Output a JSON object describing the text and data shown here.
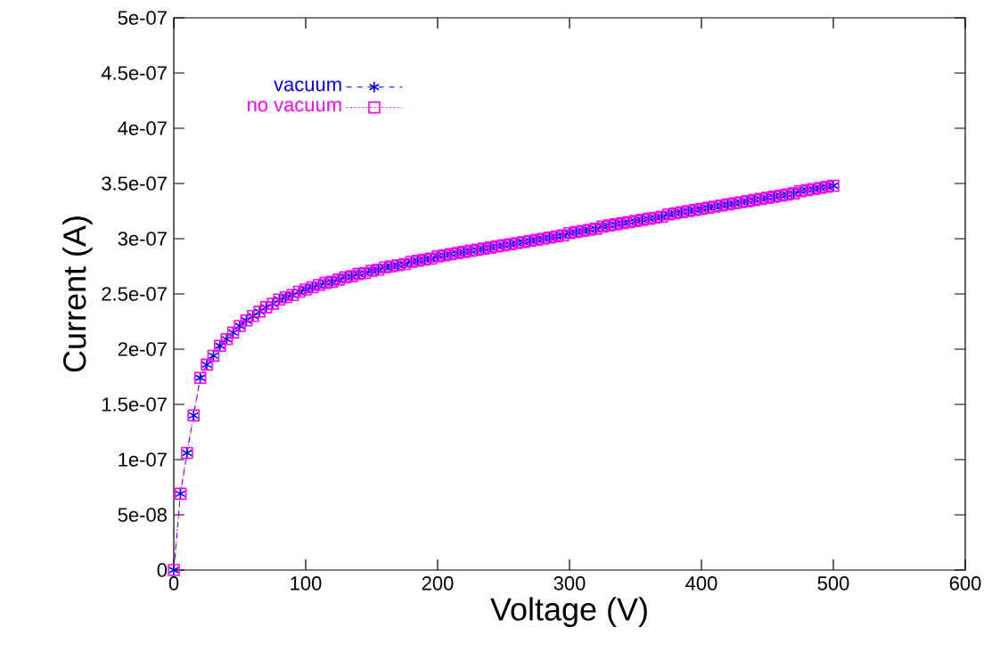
{
  "chart_data": {
    "type": "line",
    "xlabel": "Voltage (V)",
    "ylabel": "Current (A)",
    "xlim": [
      0,
      600
    ],
    "xticks": [
      0,
      100,
      200,
      300,
      400,
      500,
      600
    ],
    "ylim": [
      0,
      5e-07
    ],
    "yticks": [
      0,
      {
        "value": 5e-08,
        "label": "5e-08"
      },
      {
        "value": 1e-07,
        "label": "1e-07"
      },
      {
        "value": 1.5e-07,
        "label": "1.5e-07"
      },
      {
        "value": 2e-07,
        "label": "2e-07"
      },
      {
        "value": 2.5e-07,
        "label": "2.5e-07"
      },
      {
        "value": 3e-07,
        "label": "3e-07"
      },
      {
        "value": 3.5e-07,
        "label": "3.5e-07"
      },
      {
        "value": 4e-07,
        "label": "4e-07"
      },
      {
        "value": 4.5e-07,
        "label": "4.5e-07"
      },
      {
        "value": 5e-07,
        "label": "5e-07"
      }
    ],
    "legend": "top left",
    "x": [
      0,
      5,
      10,
      15,
      20,
      25,
      30,
      35,
      40,
      45,
      50,
      55,
      60,
      65,
      70,
      75,
      80,
      85,
      90,
      95,
      100,
      105,
      110,
      115,
      120,
      125,
      130,
      135,
      140,
      145,
      150,
      155,
      160,
      165,
      170,
      175,
      180,
      185,
      190,
      195,
      200,
      205,
      210,
      215,
      220,
      225,
      230,
      235,
      240,
      245,
      250,
      255,
      260,
      265,
      270,
      275,
      280,
      285,
      290,
      295,
      300,
      305,
      310,
      315,
      320,
      325,
      330,
      335,
      340,
      345,
      350,
      355,
      360,
      365,
      370,
      375,
      380,
      385,
      390,
      395,
      400,
      405,
      410,
      415,
      420,
      425,
      430,
      435,
      440,
      445,
      450,
      455,
      460,
      465,
      470,
      475,
      480,
      485,
      490,
      495,
      500
    ],
    "series": [
      {
        "name": "vacuum",
        "color": "#0000ff",
        "marker": "cross",
        "line_style": "dashed",
        "values": [
          0,
          6.9e-08,
          1.06e-07,
          1.4e-07,
          1.74e-07,
          1.86e-07,
          1.94e-07,
          2.03e-07,
          2.09e-07,
          2.15e-07,
          2.21e-07,
          2.26e-07,
          2.3e-07,
          2.34e-07,
          2.38e-07,
          2.41e-07,
          2.45e-07,
          2.47e-07,
          2.49e-07,
          2.52e-07,
          2.54e-07,
          2.56e-07,
          2.58e-07,
          2.6e-07,
          2.61e-07,
          2.63e-07,
          2.65e-07,
          2.66e-07,
          2.68e-07,
          2.69e-07,
          2.71e-07,
          2.72e-07,
          2.74e-07,
          2.75e-07,
          2.76e-07,
          2.77e-07,
          2.79e-07,
          2.8e-07,
          2.81e-07,
          2.82e-07,
          2.84e-07,
          2.85e-07,
          2.86e-07,
          2.87e-07,
          2.88e-07,
          2.89e-07,
          2.9e-07,
          2.91e-07,
          2.92e-07,
          2.93e-07,
          2.94e-07,
          2.95e-07,
          2.96e-07,
          2.97e-07,
          2.98e-07,
          2.99e-07,
          3e-07,
          3.01e-07,
          3.02e-07,
          3.03e-07,
          3.05e-07,
          3.06e-07,
          3.07e-07,
          3.08e-07,
          3.09e-07,
          3.11e-07,
          3.12e-07,
          3.13e-07,
          3.14e-07,
          3.15e-07,
          3.16e-07,
          3.17e-07,
          3.18e-07,
          3.19e-07,
          3.2e-07,
          3.22e-07,
          3.23e-07,
          3.24e-07,
          3.25e-07,
          3.26e-07,
          3.27e-07,
          3.28e-07,
          3.29e-07,
          3.3e-07,
          3.31e-07,
          3.32e-07,
          3.33e-07,
          3.34e-07,
          3.35e-07,
          3.36e-07,
          3.37e-07,
          3.38e-07,
          3.39e-07,
          3.4e-07,
          3.41e-07,
          3.43e-07,
          3.44e-07,
          3.45e-07,
          3.46e-07,
          3.47e-07,
          3.48e-07
        ]
      },
      {
        "name": "no vacuum",
        "color": "#ff00ff",
        "marker": "square",
        "line_style": "dotted",
        "values": [
          0,
          6.9e-08,
          1.06e-07,
          1.4e-07,
          1.74e-07,
          1.86e-07,
          1.94e-07,
          2.03e-07,
          2.09e-07,
          2.15e-07,
          2.21e-07,
          2.26e-07,
          2.3e-07,
          2.34e-07,
          2.38e-07,
          2.41e-07,
          2.45e-07,
          2.47e-07,
          2.49e-07,
          2.52e-07,
          2.54e-07,
          2.56e-07,
          2.58e-07,
          2.6e-07,
          2.61e-07,
          2.63e-07,
          2.65e-07,
          2.66e-07,
          2.68e-07,
          2.69e-07,
          2.71e-07,
          2.72e-07,
          2.74e-07,
          2.75e-07,
          2.76e-07,
          2.77e-07,
          2.79e-07,
          2.8e-07,
          2.81e-07,
          2.82e-07,
          2.84e-07,
          2.85e-07,
          2.86e-07,
          2.87e-07,
          2.88e-07,
          2.89e-07,
          2.9e-07,
          2.91e-07,
          2.92e-07,
          2.93e-07,
          2.94e-07,
          2.95e-07,
          2.96e-07,
          2.97e-07,
          2.98e-07,
          2.99e-07,
          3e-07,
          3.01e-07,
          3.02e-07,
          3.03e-07,
          3.05e-07,
          3.06e-07,
          3.07e-07,
          3.08e-07,
          3.09e-07,
          3.11e-07,
          3.12e-07,
          3.13e-07,
          3.14e-07,
          3.15e-07,
          3.16e-07,
          3.17e-07,
          3.18e-07,
          3.19e-07,
          3.2e-07,
          3.22e-07,
          3.23e-07,
          3.24e-07,
          3.25e-07,
          3.26e-07,
          3.27e-07,
          3.28e-07,
          3.29e-07,
          3.3e-07,
          3.31e-07,
          3.32e-07,
          3.33e-07,
          3.34e-07,
          3.35e-07,
          3.36e-07,
          3.37e-07,
          3.38e-07,
          3.39e-07,
          3.4e-07,
          3.41e-07,
          3.43e-07,
          3.44e-07,
          3.45e-07,
          3.46e-07,
          3.47e-07,
          3.48e-07
        ]
      }
    ]
  }
}
